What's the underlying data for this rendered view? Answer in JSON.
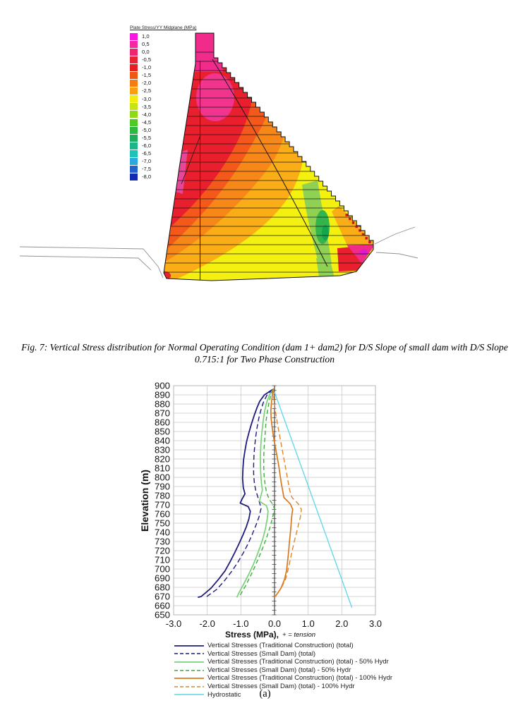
{
  "figure": {
    "contour": {
      "title": "Plate Stress/YY Midplane  (MPa)",
      "legend": [
        {
          "label": "1,0",
          "color": "#f816e0"
        },
        {
          "label": "0,5",
          "color": "#f32aa2"
        },
        {
          "label": "0,0",
          "color": "#ee2670"
        },
        {
          "label": "-0,5",
          "color": "#e82334"
        },
        {
          "label": "-1,0",
          "color": "#e61e24"
        },
        {
          "label": "-1,5",
          "color": "#ef5714"
        },
        {
          "label": "-2,0",
          "color": "#f67d12"
        },
        {
          "label": "-2,5",
          "color": "#faa010"
        },
        {
          "label": "-3,0",
          "color": "#f3ec0e"
        },
        {
          "label": "-3,5",
          "color": "#c8e312"
        },
        {
          "label": "-4,0",
          "color": "#8fda16"
        },
        {
          "label": "-4,5",
          "color": "#4fca24"
        },
        {
          "label": "-5,0",
          "color": "#2eb93e"
        },
        {
          "label": "-5,5",
          "color": "#1fad5c"
        },
        {
          "label": "-6,0",
          "color": "#1bb68a"
        },
        {
          "label": "-6,5",
          "color": "#1cc4b8"
        },
        {
          "label": "-7,0",
          "color": "#2aa9dc"
        },
        {
          "label": "-7,5",
          "color": "#2262cc"
        },
        {
          "label": "-8,0",
          "color": "#1229b2"
        }
      ]
    },
    "caption_line1": "Fig. 7: Vertical Stress distribution for Normal Operating Condition (dam 1+ dam2) for D/S Slope of small dam with D/S Slope",
    "caption_line2": "0.715:1 for Two Phase Construction",
    "sublabel": "(a)"
  },
  "chart": {
    "ylabel": "Elevation (m)",
    "xlabel_main": "Stress (MPa),",
    "xlabel_note": "+ = tension",
    "accent_grid": "#c8c8c8",
    "accent_axis": "#4a4a4a"
  },
  "chart_data": [
    {
      "type": "heatmap",
      "title": "Plate Stress/YY Midplane  (MPa)",
      "subject": "Vertical stress contour plot of gravity dam cross-section with stepped downstream face",
      "units": "MPa",
      "scale_values": [
        1.0,
        0.5,
        0.0,
        -0.5,
        -1.0,
        -1.5,
        -2.0,
        -2.5,
        -3.0,
        -3.5,
        -4.0,
        -4.5,
        -5.0,
        -5.5,
        -6.0,
        -6.5,
        -7.0,
        -7.5,
        -8.0
      ],
      "legend_position": "left"
    },
    {
      "type": "line",
      "title": "",
      "xlabel": "Stress (MPa), + = tension",
      "ylabel": "Elevation (m)",
      "xlim": [
        -3.0,
        3.0
      ],
      "ylim": [
        650,
        900
      ],
      "xticks": [
        "-3.0",
        "-2.0",
        "-1.0",
        "0.0",
        "1.0",
        "2.0",
        "3.0"
      ],
      "ytick_min": 650,
      "ytick_max": 900,
      "ytick_step": 10,
      "grid": true,
      "legend_position": "bottom",
      "series": [
        {
          "name": "Vertical Stresses (Traditional Construction) (total)",
          "color": "#1c1c7e",
          "dash": "",
          "width": 1.8,
          "points": [
            [
              -0.05,
              896
            ],
            [
              -0.3,
              890
            ],
            [
              -0.44,
              883
            ],
            [
              -0.52,
              876
            ],
            [
              -0.6,
              868
            ],
            [
              -0.68,
              859
            ],
            [
              -0.76,
              849
            ],
            [
              -0.83,
              839
            ],
            [
              -0.88,
              829
            ],
            [
              -0.92,
              819
            ],
            [
              -0.94,
              809
            ],
            [
              -0.95,
              799
            ],
            [
              -0.93,
              789
            ],
            [
              -0.88,
              782
            ],
            [
              -0.97,
              776
            ],
            [
              -1.02,
              772
            ],
            [
              -0.78,
              768
            ],
            [
              -0.72,
              763
            ],
            [
              -0.76,
              755
            ],
            [
              -0.84,
              746
            ],
            [
              -0.94,
              737
            ],
            [
              -1.05,
              728
            ],
            [
              -1.18,
              718
            ],
            [
              -1.32,
              708
            ],
            [
              -1.47,
              698
            ],
            [
              -1.66,
              689
            ],
            [
              -1.89,
              679
            ],
            [
              -2.18,
              670
            ],
            [
              -2.28,
              669
            ]
          ]
        },
        {
          "name": "Vertical Stresses (Small Dam) (total)",
          "color": "#1c1c7e",
          "dash": "7,4",
          "width": 1.4,
          "points": [
            [
              -0.05,
              896
            ],
            [
              -0.22,
              890
            ],
            [
              -0.33,
              882
            ],
            [
              -0.41,
              873
            ],
            [
              -0.47,
              864
            ],
            [
              -0.52,
              854
            ],
            [
              -0.56,
              844
            ],
            [
              -0.59,
              834
            ],
            [
              -0.61,
              824
            ],
            [
              -0.62,
              814
            ],
            [
              -0.62,
              804
            ],
            [
              -0.6,
              794
            ],
            [
              -0.56,
              786
            ],
            [
              -0.5,
              779
            ],
            [
              -0.44,
              772
            ],
            [
              -0.4,
              766
            ],
            [
              -0.46,
              757
            ],
            [
              -0.55,
              748
            ],
            [
              -0.66,
              738
            ],
            [
              -0.78,
              728
            ],
            [
              -0.92,
              718
            ],
            [
              -1.08,
              708
            ],
            [
              -1.26,
              698
            ],
            [
              -1.47,
              688
            ],
            [
              -1.71,
              678
            ],
            [
              -2.05,
              669
            ]
          ]
        },
        {
          "name": "Vertical Stresses (Traditional Construction) (total) - 50% Hydr",
          "color": "#7ad07a",
          "dash": "",
          "width": 1.7,
          "points": [
            [
              -0.04,
              896
            ],
            [
              -0.15,
              890
            ],
            [
              -0.23,
              882
            ],
            [
              -0.29,
              873
            ],
            [
              -0.33,
              864
            ],
            [
              -0.36,
              854
            ],
            [
              -0.39,
              844
            ],
            [
              -0.41,
              834
            ],
            [
              -0.42,
              824
            ],
            [
              -0.42,
              814
            ],
            [
              -0.41,
              804
            ],
            [
              -0.39,
              794
            ],
            [
              -0.36,
              786
            ],
            [
              -0.42,
              778
            ],
            [
              -0.45,
              774
            ],
            [
              -0.24,
              769
            ],
            [
              -0.19,
              763
            ],
            [
              -0.22,
              754
            ],
            [
              -0.27,
              744
            ],
            [
              -0.34,
              734
            ],
            [
              -0.43,
              724
            ],
            [
              -0.53,
              714
            ],
            [
              -0.64,
              704
            ],
            [
              -0.77,
              694
            ],
            [
              -0.91,
              684
            ],
            [
              -1.06,
              674
            ],
            [
              -1.12,
              669
            ]
          ]
        },
        {
          "name": "Vertical Stresses (Small Dam) (total) - 50% Hydr",
          "color": "#3aaf3a",
          "dash": "6,4",
          "width": 1.4,
          "points": [
            [
              -0.04,
              896
            ],
            [
              -0.11,
              890
            ],
            [
              -0.17,
              881
            ],
            [
              -0.21,
              872
            ],
            [
              -0.25,
              862
            ],
            [
              -0.27,
              852
            ],
            [
              -0.29,
              842
            ],
            [
              -0.31,
              832
            ],
            [
              -0.32,
              822
            ],
            [
              -0.32,
              812
            ],
            [
              -0.31,
              802
            ],
            [
              -0.28,
              792
            ],
            [
              -0.24,
              784
            ],
            [
              -0.16,
              776
            ],
            [
              -0.04,
              770
            ],
            [
              0.0,
              765
            ],
            [
              -0.06,
              756
            ],
            [
              -0.13,
              746
            ],
            [
              -0.22,
              736
            ],
            [
              -0.33,
              725
            ],
            [
              -0.45,
              714
            ],
            [
              -0.58,
              703
            ],
            [
              -0.72,
              692
            ],
            [
              -0.87,
              681
            ],
            [
              -1.03,
              671
            ]
          ]
        },
        {
          "name": "Vertical Stresses (Traditional Construction) (total) - 100% Hydr",
          "color": "#d8781e",
          "dash": "",
          "width": 1.7,
          "points": [
            [
              -0.03,
              897
            ],
            [
              -0.06,
              890
            ],
            [
              -0.09,
              882
            ],
            [
              -0.11,
              873
            ],
            [
              -0.1,
              864
            ],
            [
              -0.07,
              854
            ],
            [
              -0.03,
              844
            ],
            [
              0.02,
              834
            ],
            [
              0.07,
              824
            ],
            [
              0.12,
              814
            ],
            [
              0.16,
              804
            ],
            [
              0.2,
              794
            ],
            [
              0.24,
              786
            ],
            [
              0.28,
              778
            ],
            [
              0.47,
              771
            ],
            [
              0.54,
              765
            ],
            [
              0.51,
              757
            ],
            [
              0.49,
              748
            ],
            [
              0.47,
              739
            ],
            [
              0.44,
              729
            ],
            [
              0.42,
              719
            ],
            [
              0.39,
              709
            ],
            [
              0.36,
              699
            ],
            [
              0.3,
              689
            ],
            [
              0.19,
              679
            ],
            [
              0.04,
              671
            ],
            [
              -0.02,
              669
            ]
          ]
        },
        {
          "name": "Vertical Stresses (Small Dam) (total) - 100% Hydr",
          "color": "#de8728",
          "dash": "7,4",
          "width": 1.4,
          "points": [
            [
              -0.03,
              897
            ],
            [
              -0.03,
              890
            ],
            [
              -0.01,
              882
            ],
            [
              0.02,
              873
            ],
            [
              0.06,
              864
            ],
            [
              0.11,
              854
            ],
            [
              0.16,
              844
            ],
            [
              0.21,
              834
            ],
            [
              0.26,
              824
            ],
            [
              0.31,
              814
            ],
            [
              0.36,
              804
            ],
            [
              0.41,
              794
            ],
            [
              0.45,
              786
            ],
            [
              0.52,
              778
            ],
            [
              0.71,
              771
            ],
            [
              0.8,
              765
            ],
            [
              0.77,
              757
            ],
            [
              0.71,
              748
            ],
            [
              0.65,
              739
            ],
            [
              0.58,
              729
            ],
            [
              0.52,
              719
            ],
            [
              0.46,
              709
            ],
            [
              0.4,
              699
            ],
            [
              0.33,
              689
            ],
            [
              0.2,
              679
            ],
            [
              0.03,
              670
            ]
          ]
        },
        {
          "name": "Hydrostatic",
          "color": "#5bd7e7",
          "dash": "",
          "width": 1.3,
          "points": [
            [
              0.0,
              893
            ],
            [
              2.3,
              658
            ]
          ]
        }
      ]
    }
  ]
}
